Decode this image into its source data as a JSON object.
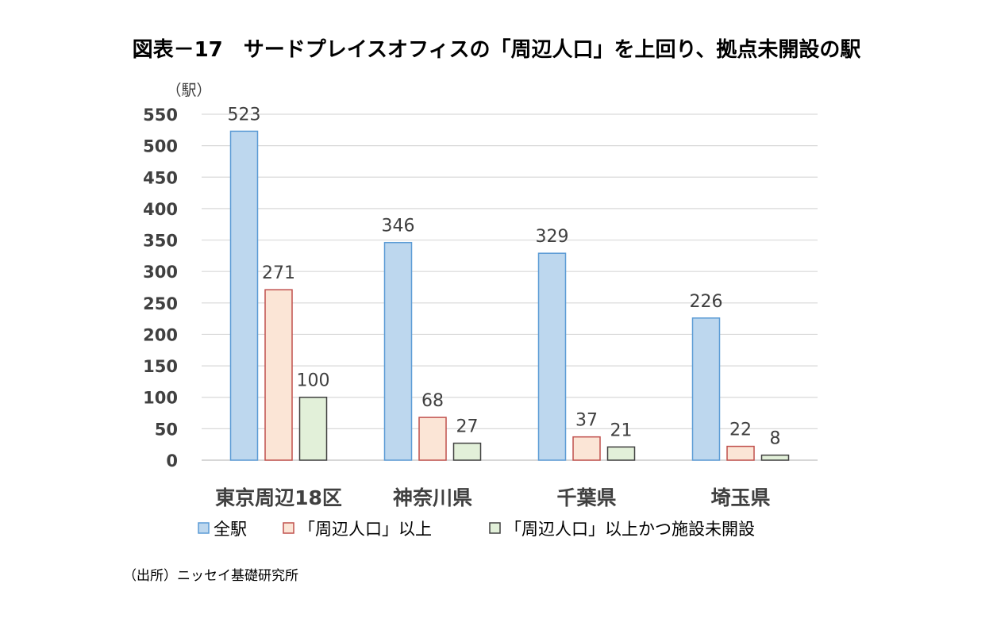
{
  "title": "図表－17　サードプレイスオフィスの「周辺人口」を上回り、拠点未開設の駅",
  "source": "（出所）ニッセイ基礎研究所",
  "chart_data": {
    "type": "bar",
    "unit_label": "（駅）",
    "categories": [
      "東京周辺18区",
      "神奈川県",
      "千葉県",
      "埼玉県"
    ],
    "series": [
      {
        "name": "全駅",
        "values": [
          523,
          346,
          329,
          226
        ],
        "color": "#BDD7EE",
        "stroke": "#5B9BD5"
      },
      {
        "name": "「周辺人口」以上",
        "values": [
          271,
          68,
          37,
          22
        ],
        "color": "#FBE5D6",
        "stroke": "#C0504D"
      },
      {
        "name": "「周辺人口」以上かつ施設未開設",
        "values": [
          100,
          27,
          21,
          8
        ],
        "color": "#E2F0D9",
        "stroke": "#404040"
      }
    ],
    "ylim": [
      0,
      550
    ],
    "yticks": [
      0,
      50,
      100,
      150,
      200,
      250,
      300,
      350,
      400,
      450,
      500,
      550
    ],
    "grid": true,
    "legend_position": "bottom"
  }
}
